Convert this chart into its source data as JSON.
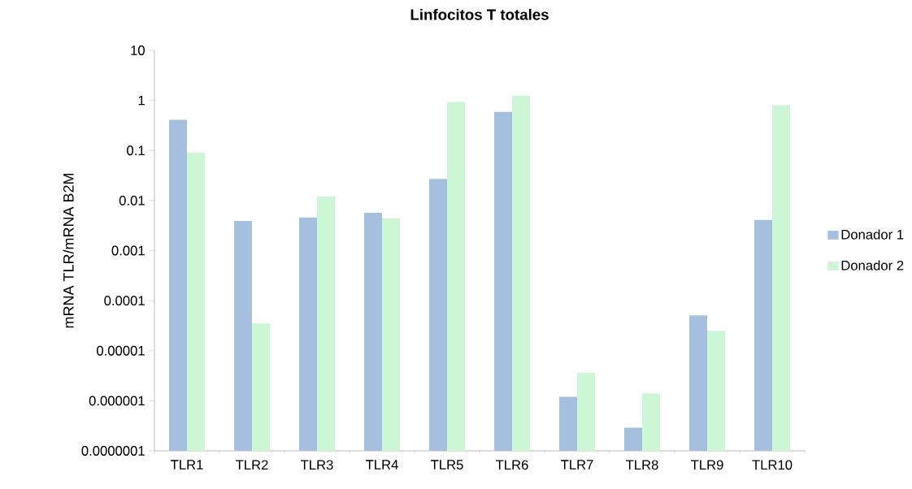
{
  "chart_data": {
    "type": "bar",
    "title": "Linfocitos T totales",
    "ylabel": "mRNA TLR/mRNA B2M",
    "categories": [
      "TLR1",
      "TLR2",
      "TLR3",
      "TLR4",
      "TLR5",
      "TLR6",
      "TLR7",
      "TLR8",
      "TLR9",
      "TLR10"
    ],
    "series": [
      {
        "name": "Donador 1",
        "color": "#a5c0df",
        "values": [
          0.41,
          0.0039,
          0.0046,
          0.0057,
          0.027,
          0.59,
          1.2e-06,
          2.9e-07,
          5.1e-05,
          0.0041
        ]
      },
      {
        "name": "Donador 2",
        "color": "#ccf6d5",
        "values": [
          0.09,
          3.5e-05,
          0.012,
          0.0044,
          0.93,
          1.25,
          3.6e-06,
          1.4e-06,
          2.5e-05,
          0.8
        ]
      }
    ],
    "log": true,
    "ylim": [
      1e-07,
      10
    ],
    "yticks": [
      {
        "value": 1e-07,
        "label": "0.0000001"
      },
      {
        "value": 1e-06,
        "label": "0.000001"
      },
      {
        "value": 1e-05,
        "label": "0.00001"
      },
      {
        "value": 0.0001,
        "label": "0.0001"
      },
      {
        "value": 0.001,
        "label": "0.001"
      },
      {
        "value": 0.01,
        "label": "0.01"
      },
      {
        "value": 0.1,
        "label": "0.1"
      },
      {
        "value": 1,
        "label": "1"
      },
      {
        "value": 10,
        "label": "10"
      }
    ],
    "legend": "right"
  }
}
